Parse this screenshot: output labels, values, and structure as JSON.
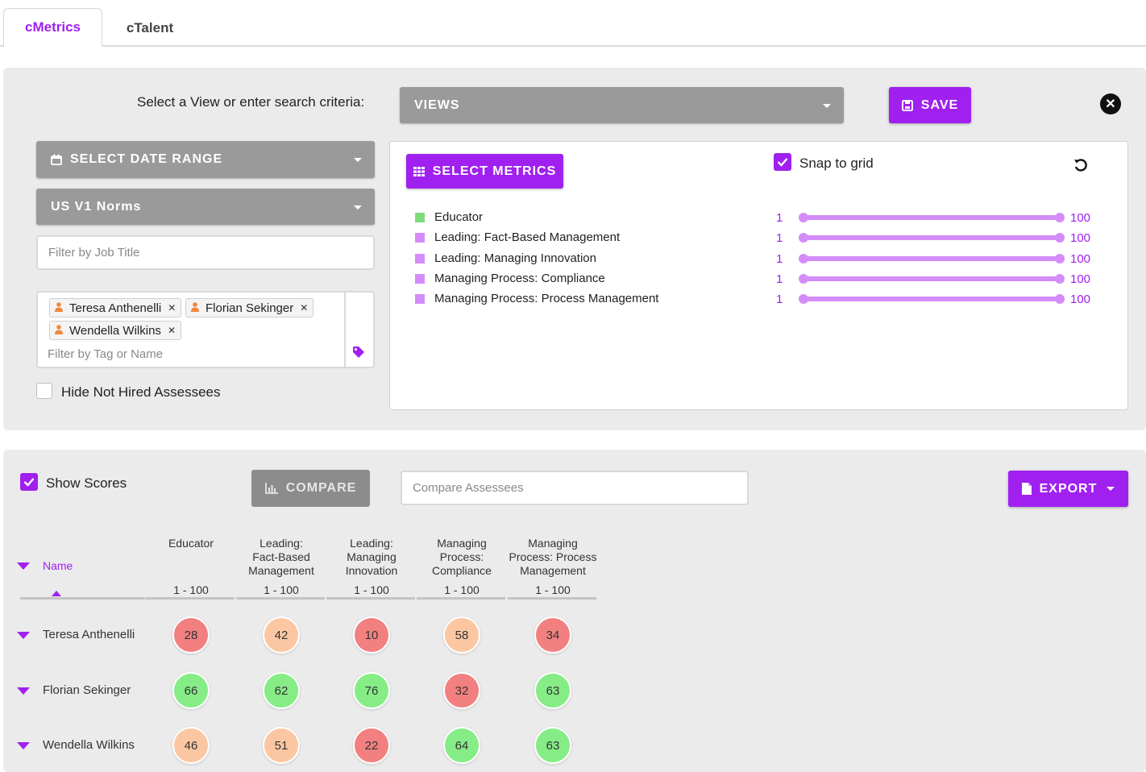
{
  "tabs": [
    {
      "label": "cMetrics",
      "active": true
    },
    {
      "label": "cTalent",
      "active": false
    }
  ],
  "search": {
    "label": "Select a View or enter search criteria:",
    "views_label": "VIEWS",
    "save_label": "SAVE",
    "date_range_label": "SELECT DATE RANGE",
    "norms_label": "US V1 Norms",
    "job_title_placeholder": "Filter by Job Title",
    "tag_placeholder": "Filter by Tag or Name",
    "chips": [
      "Teresa Anthenelli",
      "Florian Sekinger",
      "Wendella Wilkins"
    ],
    "hide_not_hired_label": "Hide Not Hired Assessees",
    "hide_not_hired_checked": false
  },
  "metrics_panel": {
    "select_metrics_label": "SELECT METRICS",
    "snap_to_grid_label": "Snap to grid",
    "snap_to_grid_checked": true,
    "metrics": [
      {
        "name": "Educator",
        "min": "1",
        "max": "100",
        "color": "#7ddc7d"
      },
      {
        "name": "Leading: Fact-Based Management",
        "min": "1",
        "max": "100",
        "color": "#d48cf9"
      },
      {
        "name": "Leading: Managing Innovation",
        "min": "1",
        "max": "100",
        "color": "#d48cf9"
      },
      {
        "name": "Managing Process: Compliance",
        "min": "1",
        "max": "100",
        "color": "#d48cf9"
      },
      {
        "name": "Managing Process: Process Management",
        "min": "1",
        "max": "100",
        "color": "#d48cf9"
      }
    ]
  },
  "results": {
    "show_scores_label": "Show Scores",
    "show_scores_checked": true,
    "compare_label": "COMPARE",
    "compare_placeholder": "Compare Assessees",
    "export_label": "EXPORT",
    "name_header": "Name",
    "columns": [
      {
        "lines": [
          "Educator"
        ],
        "range": "1 - 100"
      },
      {
        "lines": [
          "Leading:",
          "Fact-Based",
          "Management"
        ],
        "range": "1 - 100"
      },
      {
        "lines": [
          "Leading:",
          "Managing",
          "Innovation"
        ],
        "range": "1 - 100"
      },
      {
        "lines": [
          "Managing",
          "Process:",
          "Compliance"
        ],
        "range": "1 - 100"
      },
      {
        "lines": [
          "Managing",
          "Process: Process",
          "Management"
        ],
        "range": "1 - 100"
      }
    ],
    "rows": [
      {
        "name": "Teresa Anthenelli",
        "scores": [
          "28",
          "42",
          "10",
          "58",
          "34"
        ]
      },
      {
        "name": "Florian Sekinger",
        "scores": [
          "66",
          "62",
          "76",
          "32",
          "63"
        ]
      },
      {
        "name": "Wendella Wilkins",
        "scores": [
          "46",
          "51",
          "22",
          "64",
          "63"
        ]
      }
    ]
  },
  "colors": {
    "accent": "#a020f0",
    "score_red": "#f28080",
    "score_peach": "#fbc7a2",
    "score_green": "#86ec86"
  }
}
